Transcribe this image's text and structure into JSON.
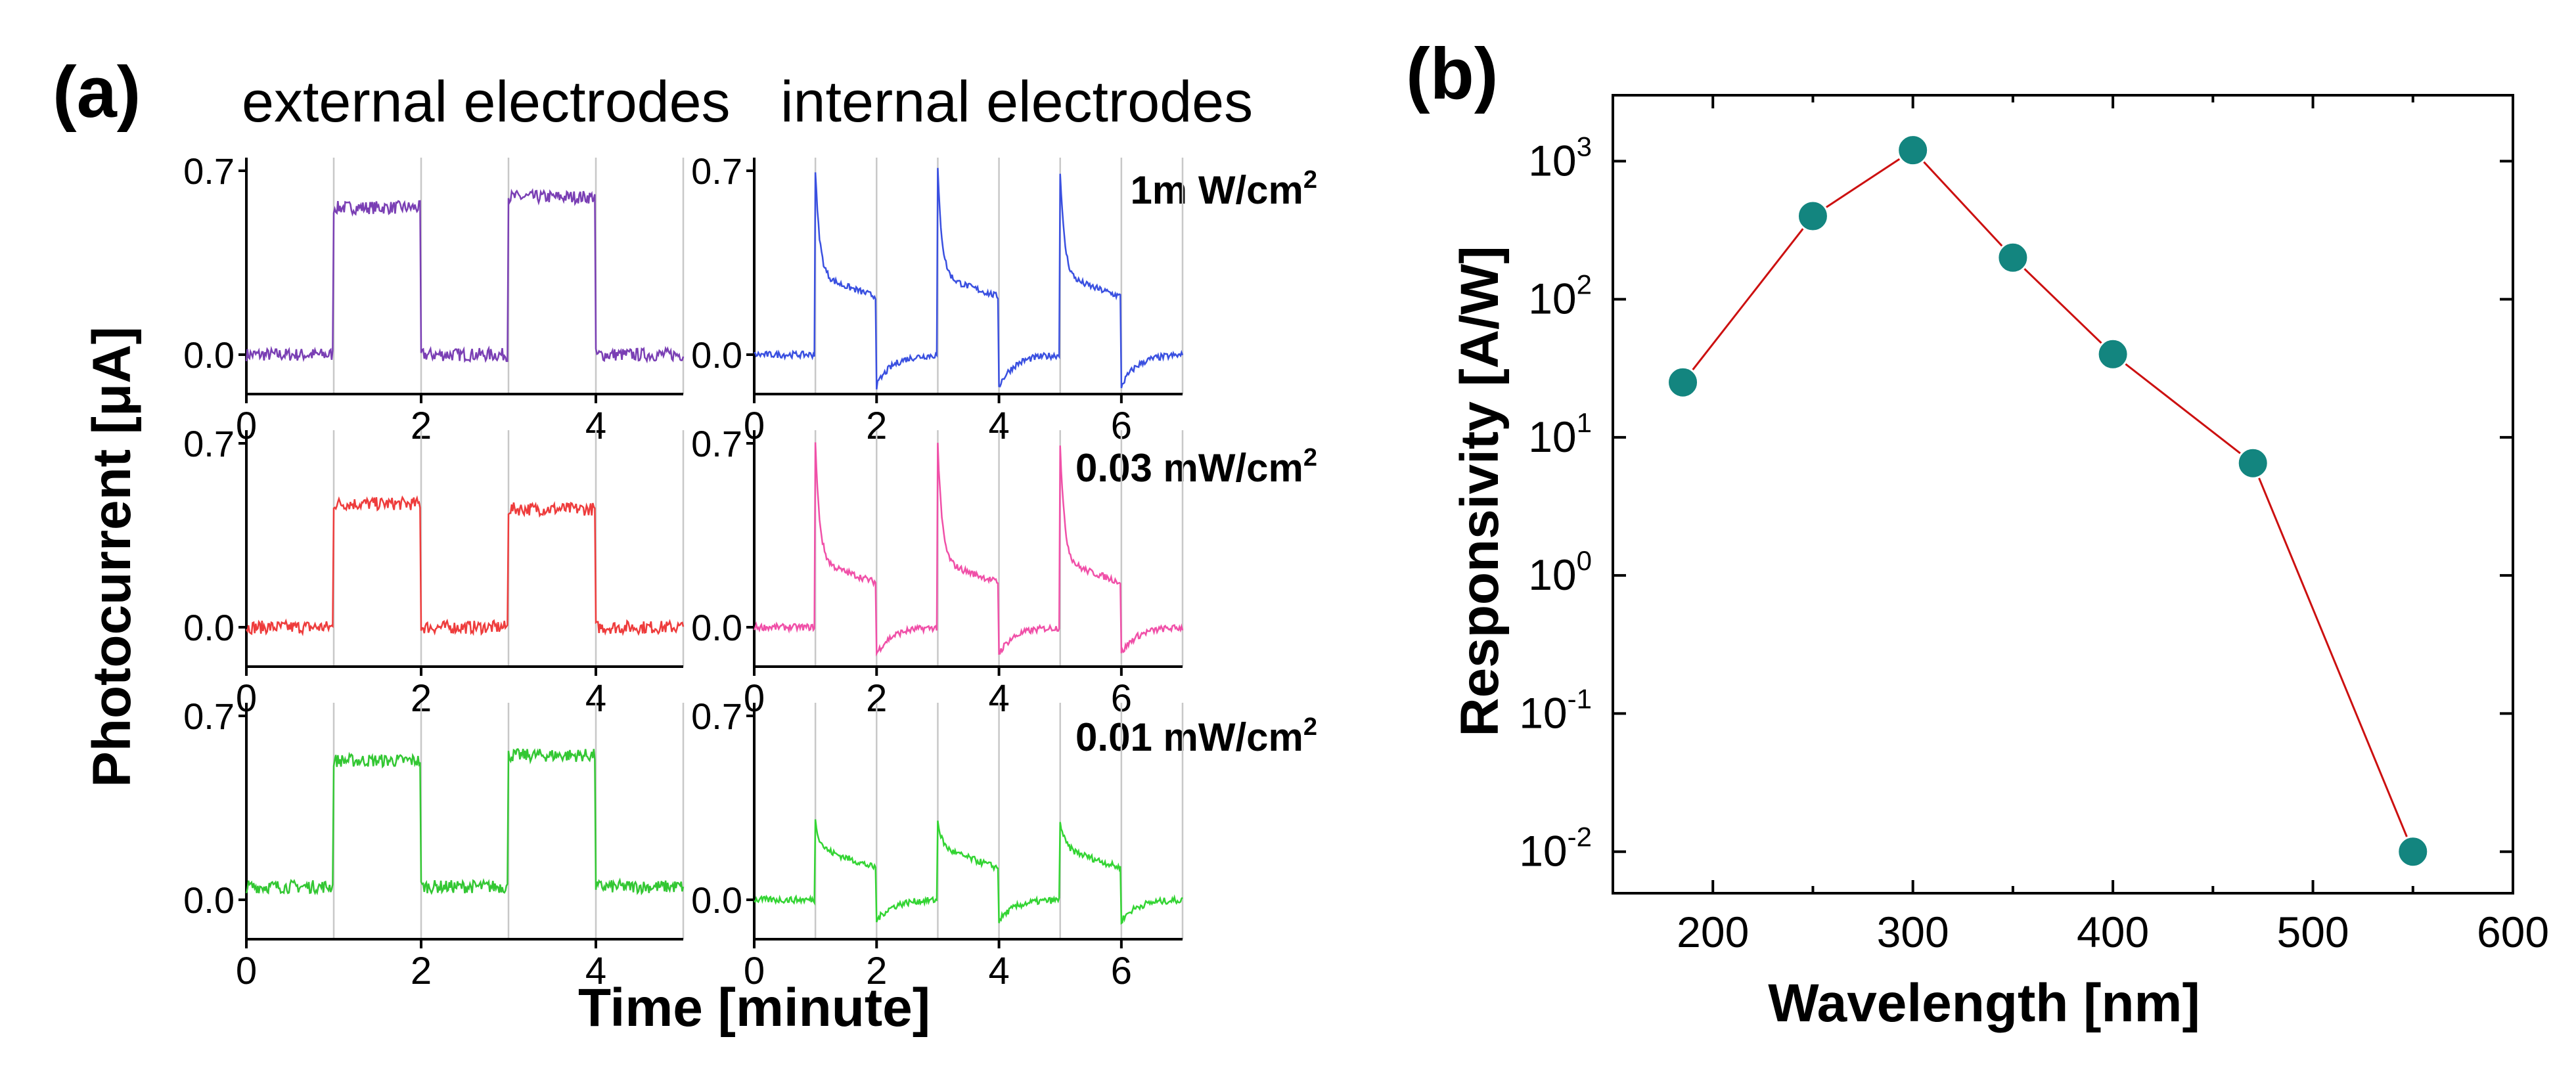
{
  "figure": {
    "panel_a_label": "(a)",
    "panel_b_label": "(b)",
    "col_external": "external electrodes",
    "col_internal": "internal electrodes",
    "ylabel_a": "Photocurrent [μA]",
    "xlabel_a": "Time [minute]",
    "intensities": [
      {
        "value": "1m W/cm",
        "sup": "2"
      },
      {
        "value": "0.03 mW/cm",
        "sup": "2"
      },
      {
        "value": "0.01 mW/cm",
        "sup": "2"
      }
    ]
  },
  "chart_data": [
    {
      "type": "line",
      "panel": "a",
      "grid": "3 rows x 2 columns of small multiples",
      "xlabel": "Time [minute]",
      "ylabel": "Photocurrent [μA]",
      "columns": [
        "external electrodes",
        "internal electrodes"
      ],
      "rows": [
        "1m W/cm2",
        "0.03 mW/cm2",
        "0.01 mW/cm2"
      ],
      "yticks": [
        "0.0",
        "0.7"
      ],
      "ylim": [
        -0.15,
        0.75
      ],
      "external": {
        "xlim": [
          0,
          5
        ],
        "xticks": [
          "0",
          "2",
          "4"
        ],
        "on_periods": [
          [
            1,
            2
          ],
          [
            3,
            4
          ]
        ],
        "series": [
          {
            "row": 0,
            "color": "#7a3fb4",
            "baseline": 0.0,
            "on_level": [
              0.56,
              0.6
            ]
          },
          {
            "row": 1,
            "color": "#ee3c3c",
            "baseline": 0.0,
            "on_level": [
              0.47,
              0.45
            ]
          },
          {
            "row": 2,
            "color": "#33c733",
            "baseline": 0.05,
            "on_level": [
              0.53,
              0.55
            ]
          }
        ]
      },
      "internal": {
        "xlim": [
          0,
          7
        ],
        "xticks": [
          "0",
          "2",
          "4",
          "6"
        ],
        "on_periods": [
          [
            1,
            2
          ],
          [
            3,
            4
          ],
          [
            5,
            6
          ]
        ],
        "series": [
          {
            "row": 0,
            "color": "#3a50e0",
            "baseline": 0.0,
            "peak": 0.7,
            "plateau": 0.3,
            "undershoot": -0.12
          },
          {
            "row": 1,
            "color": "#f050a8",
            "baseline": 0.0,
            "peak": 0.7,
            "plateau": 0.25,
            "undershoot": -0.1
          },
          {
            "row": 2,
            "color": "#33d433",
            "baseline": 0.0,
            "peak": 0.3,
            "plateau": 0.2,
            "undershoot": -0.08
          }
        ]
      }
    },
    {
      "type": "scatter",
      "panel": "b",
      "xlabel": "Wavelength [nm]",
      "ylabel": "Responsivity [A/W]",
      "yscale": "log",
      "xlim": [
        150,
        600
      ],
      "ylim": [
        0.005,
        3000
      ],
      "xticks": [
        "200",
        "300",
        "400",
        "500",
        "600"
      ],
      "yticks": [
        {
          "base": "10",
          "exp": "-2"
        },
        {
          "base": "10",
          "exp": "-1"
        },
        {
          "base": "10",
          "exp": "0"
        },
        {
          "base": "10",
          "exp": "1"
        },
        {
          "base": "10",
          "exp": "2"
        },
        {
          "base": "10",
          "exp": "3"
        }
      ],
      "x": [
        185,
        250,
        300,
        350,
        400,
        470,
        550
      ],
      "y": [
        25,
        400,
        1200,
        200,
        40,
        6.5,
        0.01
      ],
      "marker_color": "#13857f",
      "line_color": "#cc1010"
    }
  ]
}
